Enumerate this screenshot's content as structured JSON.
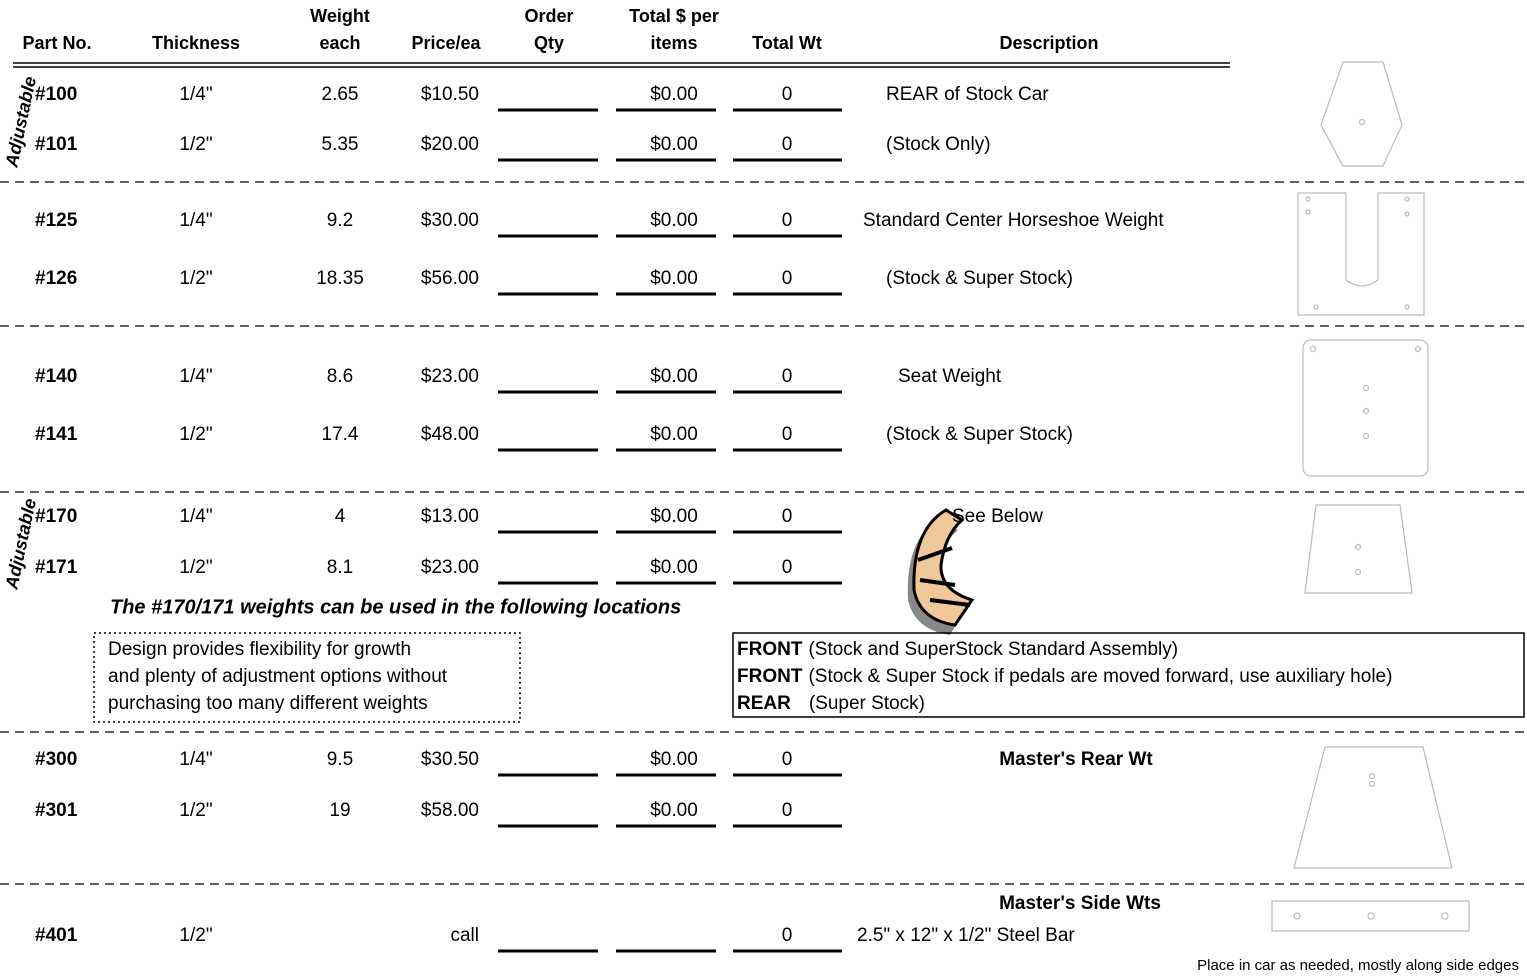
{
  "header": {
    "columns": [
      [
        "Part No."
      ],
      [
        "Thickness"
      ],
      [
        "Weight",
        "each"
      ],
      [
        "Price/ea"
      ],
      [
        "Order",
        "Qty"
      ],
      [
        "Total $ per",
        "items"
      ],
      [
        "Total Wt"
      ],
      [
        "Description"
      ]
    ]
  },
  "adjustable_label": "Adjustable",
  "rows": [
    {
      "part": "#100",
      "thickness": "1/4\"",
      "weight": "2.65",
      "price": "$10.50",
      "total": "$0.00",
      "total_wt": "0",
      "description": "REAR of Stock Car"
    },
    {
      "part": "#101",
      "thickness": "1/2\"",
      "weight": "5.35",
      "price": "$20.00",
      "total": "$0.00",
      "total_wt": "0",
      "description": "(Stock Only)"
    },
    {
      "part": "#125",
      "thickness": "1/4\"",
      "weight": "9.2",
      "price": "$30.00",
      "total": "$0.00",
      "total_wt": "0",
      "description": "Standard Center Horseshoe Weight"
    },
    {
      "part": "#126",
      "thickness": "1/2\"",
      "weight": "18.35",
      "price": "$56.00",
      "total": "$0.00",
      "total_wt": "0",
      "description": "(Stock & Super Stock)"
    },
    {
      "part": "#140",
      "thickness": "1/4\"",
      "weight": "8.6",
      "price": "$23.00",
      "total": "$0.00",
      "total_wt": "0",
      "description": "Seat Weight"
    },
    {
      "part": "#141",
      "thickness": "1/2\"",
      "weight": "17.4",
      "price": "$48.00",
      "total": "$0.00",
      "total_wt": "0",
      "description": "(Stock & Super Stock)"
    },
    {
      "part": "#170",
      "thickness": "1/4\"",
      "weight": "4",
      "price": "$13.00",
      "total": "$0.00",
      "total_wt": "0",
      "description": "See Below"
    },
    {
      "part": "#171",
      "thickness": "1/2\"",
      "weight": "8.1",
      "price": "$23.00",
      "total": "$0.00",
      "total_wt": "0"
    },
    {
      "part": "#300",
      "thickness": "1/4\"",
      "weight": "9.5",
      "price": "$30.50",
      "total": "$0.00",
      "total_wt": "0",
      "description": "Master's Rear Wt"
    },
    {
      "part": "#301",
      "thickness": "1/2\"",
      "weight": "19",
      "price": "$58.00",
      "total": "$0.00",
      "total_wt": "0"
    },
    {
      "part": "#401",
      "thickness": "1/2\"",
      "price": "call",
      "total_wt": "0",
      "description": "2.5\" x 12\" x 1/2\" Steel Bar"
    }
  ],
  "side_heading": "Master's Side Wts",
  "note": "The #170/171 weights can be used in the following locations",
  "design_box": [
    "Design provides flexibility for growth",
    "and plenty of adjustment options without",
    "purchasing too many different weights"
  ],
  "locations": [
    {
      "bold": "FRONT",
      "text": "(Stock and SuperStock Standard Assembly)"
    },
    {
      "bold": "FRONT",
      "text": "(Stock & Super Stock if pedals are moved forward, use auxiliary hole)"
    },
    {
      "bold": "REAR",
      "text": "(Super Stock)"
    }
  ],
  "footer": "Place in car as needed, mostly along side edges"
}
